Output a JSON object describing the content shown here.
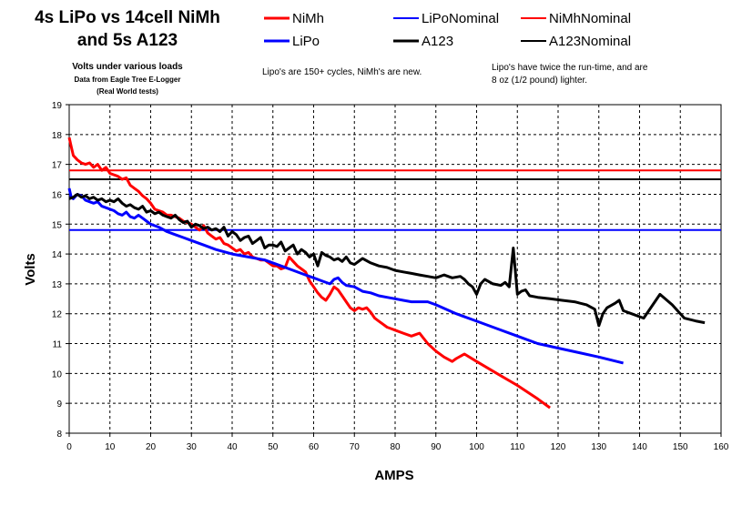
{
  "chart_data": {
    "type": "line",
    "title": [
      "4s LiPo vs 14cell NiMh",
      "and 5s A123"
    ],
    "subtitle": "Volts under various loads",
    "subtitle_lines": [
      "Data from Eagle Tree E-Logger",
      "(Real World tests)"
    ],
    "annotations": [
      "Lipo's are 150+ cycles, NiMh's are new.",
      "Lipo's have twice the run-time, and are",
      "8 oz (1/2 pound) lighter."
    ],
    "xlabel": "AMPS",
    "ylabel": "Volts",
    "xlim": [
      0,
      160
    ],
    "ylim": [
      8,
      19
    ],
    "xticks": [
      0,
      10,
      20,
      30,
      40,
      50,
      60,
      70,
      80,
      90,
      100,
      110,
      120,
      130,
      140,
      150,
      160
    ],
    "yticks": [
      8,
      9,
      10,
      11,
      12,
      13,
      14,
      15,
      16,
      17,
      18,
      19
    ],
    "grid": true,
    "legend_position": "top",
    "series": [
      {
        "name": "NiMh",
        "color": "#ff0000",
        "width": 3,
        "x": [
          0,
          0.5,
          1,
          2,
          3,
          4,
          5,
          6,
          7,
          8,
          9,
          10,
          11,
          12,
          13,
          14,
          15,
          16,
          17,
          18,
          19,
          20,
          21,
          22,
          23,
          24,
          25,
          26,
          27,
          28,
          29,
          30,
          31,
          32,
          33,
          34,
          35,
          36,
          37,
          38,
          39,
          40,
          41,
          42,
          43,
          44,
          45,
          46,
          47,
          48,
          49,
          50,
          51,
          52,
          53,
          54,
          55,
          56,
          57,
          58,
          59,
          60,
          61,
          62,
          63,
          64,
          65,
          66,
          67,
          68,
          69,
          70,
          71,
          72,
          73,
          74,
          75,
          76,
          77,
          78,
          79,
          80,
          82,
          84,
          85,
          86,
          88,
          90,
          92,
          94,
          95,
          97,
          100,
          105,
          110,
          115,
          118
        ],
        "values": [
          17.9,
          17.6,
          17.3,
          17.15,
          17.05,
          17.0,
          17.05,
          16.9,
          17.0,
          16.8,
          16.9,
          16.7,
          16.65,
          16.6,
          16.5,
          16.55,
          16.3,
          16.2,
          16.1,
          15.95,
          15.85,
          15.7,
          15.5,
          15.45,
          15.4,
          15.3,
          15.3,
          15.25,
          15.2,
          15.1,
          15.05,
          15.0,
          14.9,
          14.8,
          14.95,
          14.7,
          14.6,
          14.5,
          14.55,
          14.35,
          14.3,
          14.2,
          14.1,
          14.15,
          14.0,
          14.05,
          13.9,
          13.85,
          13.8,
          13.8,
          13.7,
          13.6,
          13.6,
          13.5,
          13.55,
          13.9,
          13.75,
          13.6,
          13.5,
          13.4,
          13.1,
          12.9,
          12.7,
          12.55,
          12.45,
          12.65,
          12.9,
          12.8,
          12.6,
          12.4,
          12.2,
          12.1,
          12.2,
          12.15,
          12.2,
          12.05,
          11.85,
          11.75,
          11.65,
          11.55,
          11.5,
          11.45,
          11.35,
          11.25,
          11.3,
          11.35,
          11.0,
          10.75,
          10.55,
          10.4,
          10.5,
          10.65,
          10.4,
          10.0,
          9.6,
          9.15,
          8.85
        ]
      },
      {
        "name": "LiPo",
        "color": "#0000ff",
        "width": 3,
        "x": [
          0,
          0.5,
          1,
          2,
          3,
          4,
          5,
          6,
          7,
          8,
          9,
          10,
          11,
          12,
          13,
          14,
          15,
          16,
          17,
          18,
          19,
          20,
          22,
          24,
          26,
          28,
          30,
          33,
          36,
          40,
          44,
          48,
          50,
          52,
          55,
          58,
          60,
          62,
          64,
          65,
          66,
          67,
          68,
          70,
          72,
          74,
          76,
          78,
          80,
          82,
          84,
          86,
          88,
          90,
          95,
          100,
          105,
          110,
          115,
          120,
          125,
          130,
          136
        ],
        "values": [
          16.2,
          15.9,
          15.85,
          16.0,
          15.95,
          15.8,
          15.75,
          15.7,
          15.75,
          15.6,
          15.55,
          15.5,
          15.45,
          15.35,
          15.3,
          15.4,
          15.25,
          15.2,
          15.3,
          15.2,
          15.1,
          15.0,
          14.9,
          14.75,
          14.65,
          14.55,
          14.45,
          14.3,
          14.15,
          14.0,
          13.9,
          13.8,
          13.7,
          13.6,
          13.45,
          13.3,
          13.2,
          13.1,
          13.0,
          13.15,
          13.2,
          13.05,
          12.95,
          12.9,
          12.75,
          12.7,
          12.6,
          12.55,
          12.5,
          12.45,
          12.4,
          12.4,
          12.4,
          12.3,
          12.0,
          11.75,
          11.5,
          11.25,
          11.0,
          10.85,
          10.7,
          10.55,
          10.35
        ]
      },
      {
        "name": "A123",
        "color": "#000000",
        "width": 3,
        "x": [
          0,
          1,
          2,
          3,
          4,
          5,
          6,
          7,
          8,
          9,
          10,
          11,
          12,
          13,
          14,
          15,
          16,
          17,
          18,
          19,
          20,
          21,
          22,
          23,
          24,
          25,
          26,
          27,
          28,
          29,
          30,
          31,
          32,
          33,
          34,
          35,
          36,
          37,
          38,
          39,
          40,
          41,
          42,
          43,
          44,
          45,
          46,
          47,
          48,
          49,
          50,
          51,
          52,
          53,
          54,
          55,
          56,
          57,
          58,
          59,
          60,
          61,
          62,
          63,
          64,
          65,
          66,
          67,
          68,
          69,
          70,
          72,
          74,
          76,
          78,
          80,
          82,
          84,
          86,
          88,
          90,
          92,
          94,
          96,
          97,
          98,
          99,
          100,
          101,
          102,
          104,
          106,
          107,
          108,
          109,
          110,
          111,
          112,
          113,
          115,
          118,
          121,
          124,
          127,
          129,
          130,
          131,
          132,
          134,
          135,
          136,
          138,
          141,
          145,
          148,
          151,
          154,
          156
        ],
        "values": [
          15.85,
          15.9,
          16.0,
          15.9,
          15.95,
          15.85,
          15.9,
          15.8,
          15.85,
          15.75,
          15.8,
          15.75,
          15.85,
          15.7,
          15.6,
          15.65,
          15.55,
          15.5,
          15.6,
          15.4,
          15.45,
          15.35,
          15.4,
          15.3,
          15.25,
          15.2,
          15.3,
          15.15,
          15.05,
          15.1,
          14.9,
          15.0,
          14.95,
          14.85,
          14.9,
          14.8,
          14.85,
          14.75,
          14.9,
          14.6,
          14.75,
          14.65,
          14.45,
          14.55,
          14.6,
          14.35,
          14.45,
          14.55,
          14.2,
          14.3,
          14.3,
          14.25,
          14.4,
          14.1,
          14.2,
          14.3,
          14.0,
          14.15,
          14.05,
          13.9,
          14.0,
          13.6,
          14.05,
          13.95,
          13.9,
          13.8,
          13.85,
          13.75,
          13.9,
          13.7,
          13.65,
          13.85,
          13.7,
          13.6,
          13.55,
          13.45,
          13.4,
          13.35,
          13.3,
          13.25,
          13.2,
          13.3,
          13.2,
          13.25,
          13.15,
          13.0,
          12.9,
          12.65,
          13.0,
          13.15,
          13.0,
          12.95,
          13.05,
          12.9,
          14.2,
          12.65,
          12.75,
          12.8,
          12.6,
          12.55,
          12.5,
          12.45,
          12.4,
          12.3,
          12.15,
          11.6,
          12.0,
          12.2,
          12.35,
          12.45,
          12.1,
          12.0,
          11.85,
          12.65,
          12.3,
          11.85,
          11.75,
          11.7
        ]
      },
      {
        "name": "LiPoNominal",
        "color": "#0000ff",
        "width": 2,
        "x": [
          0,
          160
        ],
        "values": [
          14.8,
          14.8
        ]
      },
      {
        "name": "A123Nominal",
        "color": "#000000",
        "width": 2,
        "x": [
          0,
          160
        ],
        "values": [
          16.5,
          16.5
        ]
      },
      {
        "name": "NiMhNominal",
        "color": "#ff0000",
        "width": 2,
        "x": [
          0,
          160
        ],
        "values": [
          16.8,
          16.8
        ]
      }
    ],
    "legend_entries": [
      {
        "name": "NiMh",
        "color": "#ff0000",
        "width": 3
      },
      {
        "name": "LiPoNominal",
        "color": "#0000ff",
        "width": 2
      },
      {
        "name": "NiMhNominal",
        "color": "#ff0000",
        "width": 2
      },
      {
        "name": "LiPo",
        "color": "#0000ff",
        "width": 3
      },
      {
        "name": "A123",
        "color": "#000000",
        "width": 3
      },
      {
        "name": "A123Nominal",
        "color": "#000000",
        "width": 2
      }
    ]
  }
}
